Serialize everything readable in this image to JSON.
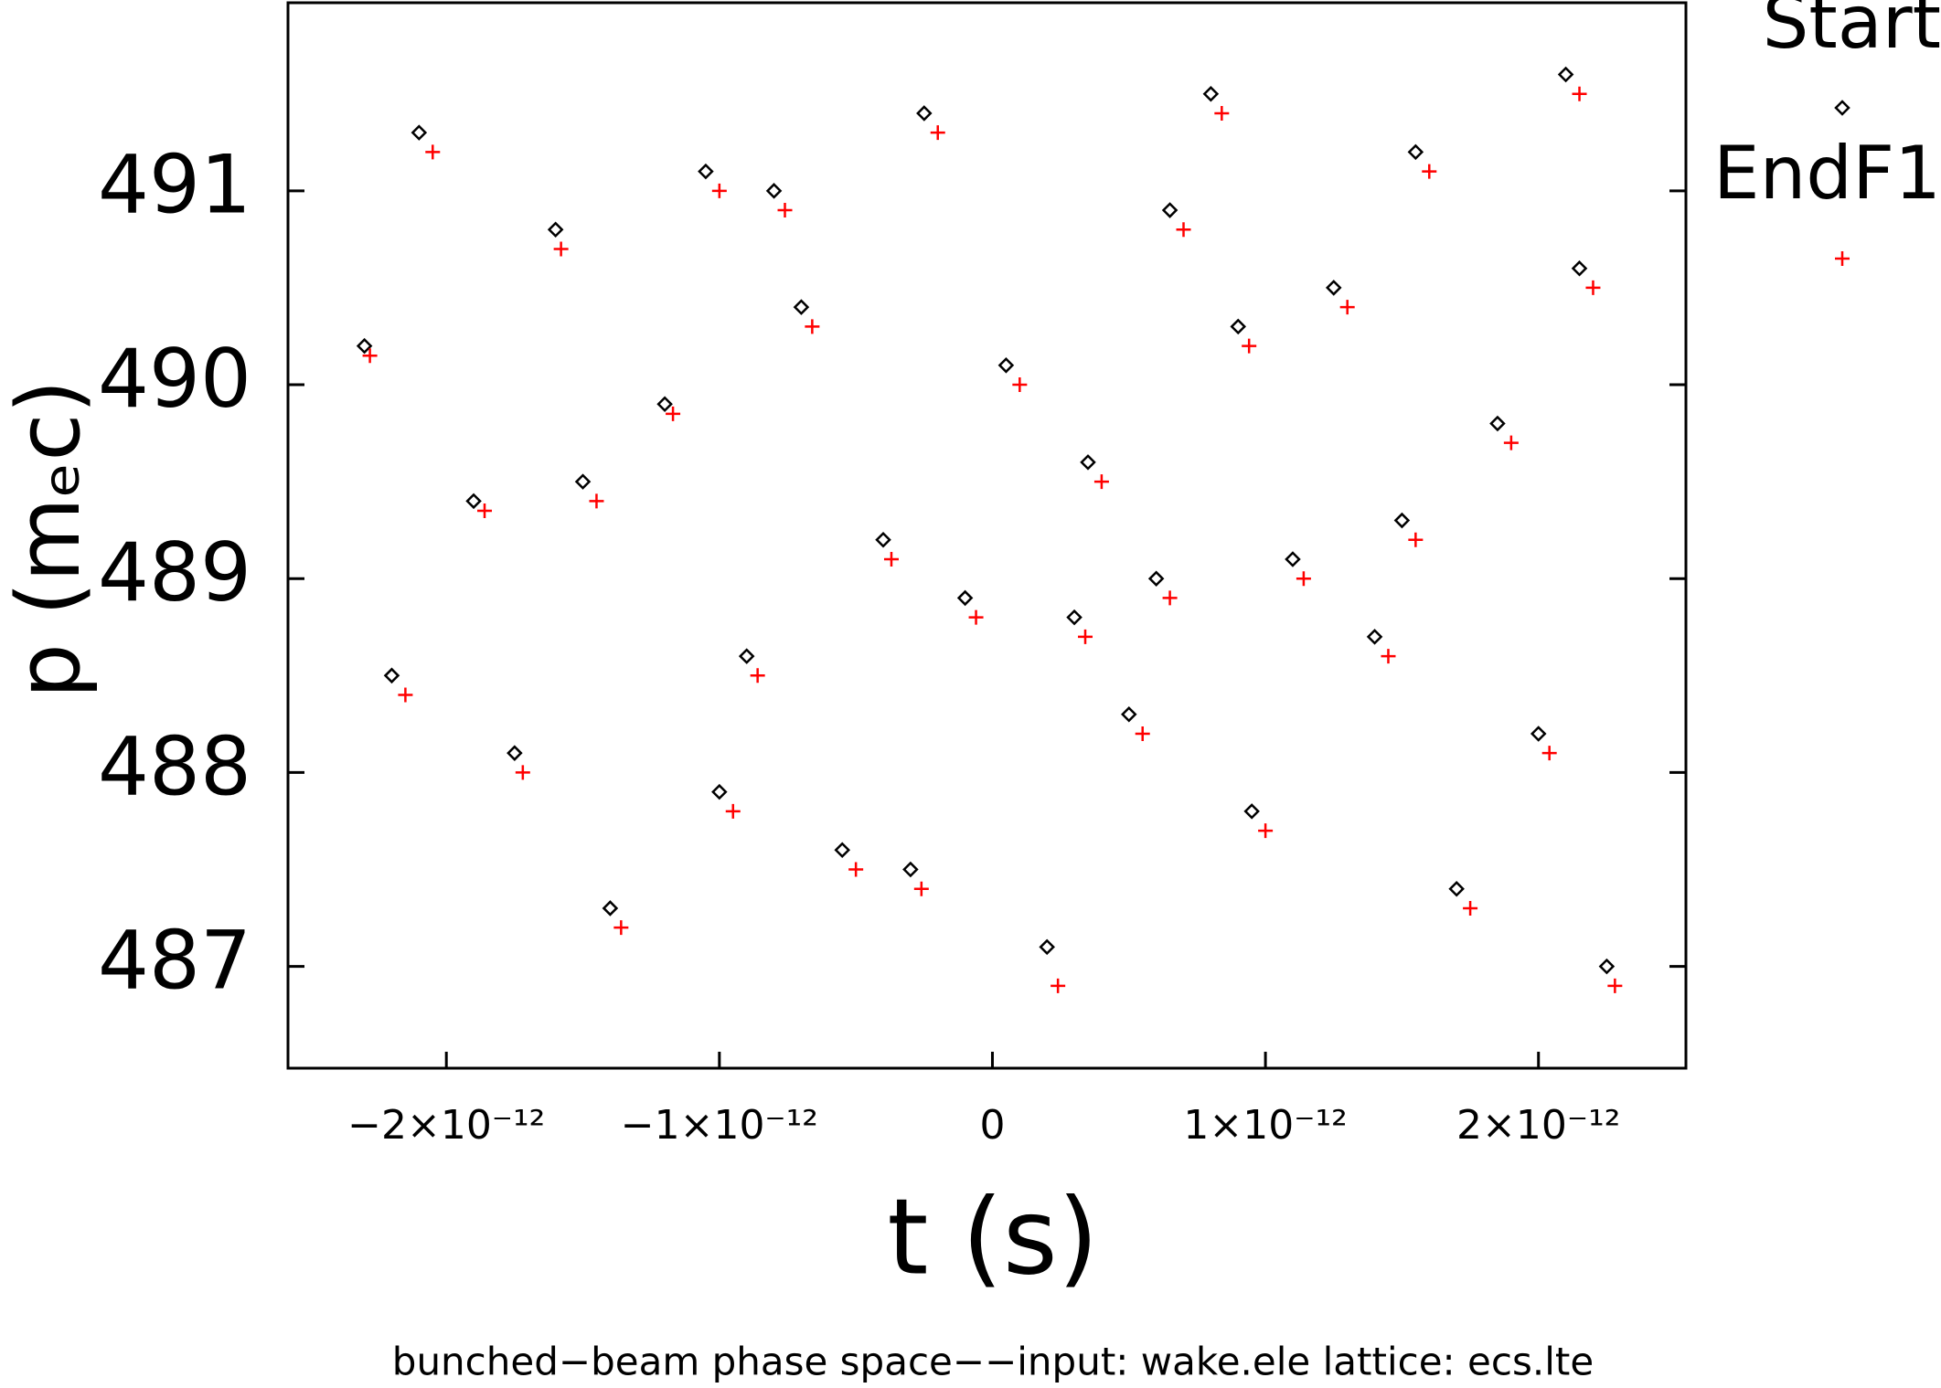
{
  "chart_data": {
    "type": "scatter",
    "x_label": "t (s)",
    "y_label": "p (mₑc)",
    "caption": "bunched−beam phase space−−input: wake.ele   lattice: ecs.lte",
    "xlim": [
      -2.58e-12,
      2.54e-12
    ],
    "ylim": [
      486.475,
      491.97
    ],
    "xticks": [
      {
        "value": -2e-12,
        "label": "−2×10⁻¹²"
      },
      {
        "value": -1e-12,
        "label": "−1×10⁻¹²"
      },
      0,
      {
        "value": 1e-12,
        "label": "1×10⁻¹²"
      },
      {
        "value": 2e-12,
        "label": "2×10⁻¹²"
      }
    ],
    "yticks": [
      487,
      488,
      489,
      490,
      491
    ],
    "legend": "outside right",
    "series": [
      {
        "name": "Start",
        "marker": "diamond",
        "color": "#000000",
        "x": [
          -2.3e-12,
          -2.1e-12,
          -1.9e-12,
          -1.75e-12,
          -1.6e-12,
          -1.4e-12,
          -1.2e-12,
          -1.05e-12,
          -9e-13,
          -7e-13,
          -5.5e-13,
          -4e-13,
          -2.5e-13,
          -1e-13,
          5e-14,
          2e-13,
          3.5e-13,
          5e-13,
          6.5e-13,
          8e-13,
          9.5e-13,
          1.1e-12,
          1.25e-12,
          1.4e-12,
          1.55e-12,
          1.7e-12,
          1.85e-12,
          2e-12,
          2.15e-12,
          2.25e-12,
          -2.2e-12,
          -1.5e-12,
          -8e-13,
          -3e-13,
          3e-13,
          9e-13,
          1.5e-12,
          2.1e-12,
          -1e-12,
          6e-13
        ],
        "values": [
          490.2,
          491.3,
          489.4,
          488.1,
          490.8,
          487.3,
          489.9,
          491.1,
          488.6,
          490.4,
          487.6,
          489.2,
          491.4,
          488.9,
          490.1,
          487.1,
          489.6,
          488.3,
          490.9,
          491.5,
          487.8,
          489.1,
          490.5,
          488.7,
          491.2,
          487.4,
          489.8,
          488.2,
          490.6,
          487.0,
          488.5,
          489.5,
          491.0,
          487.5,
          488.8,
          490.3,
          489.3,
          491.6,
          487.9,
          489.0
        ]
      },
      {
        "name": "EndF1",
        "marker": "plus",
        "color": "#ff0000",
        "x": [
          -2.28e-12,
          -2.05e-12,
          -1.86e-12,
          -1.72e-12,
          -1.58e-12,
          -1.36e-12,
          -1.17e-12,
          -1e-12,
          -8.6e-13,
          -6.6e-13,
          -5e-13,
          -3.7e-13,
          -2e-13,
          -6e-14,
          1e-13,
          2.4e-13,
          4e-13,
          5.5e-13,
          7e-13,
          8.4e-13,
          1e-12,
          1.14e-12,
          1.3e-12,
          1.45e-12,
          1.6e-12,
          1.75e-12,
          1.9e-12,
          2.04e-12,
          2.2e-12,
          2.28e-12,
          -2.15e-12,
          -1.45e-12,
          -7.6e-13,
          -2.6e-13,
          3.4e-13,
          9.4e-13,
          1.55e-12,
          2.15e-12,
          -9.5e-13,
          6.5e-13
        ],
        "values": [
          490.15,
          491.2,
          489.35,
          488.0,
          490.7,
          487.2,
          489.85,
          491.0,
          488.5,
          490.3,
          487.5,
          489.1,
          491.3,
          488.8,
          490.0,
          486.9,
          489.5,
          488.2,
          490.8,
          491.4,
          487.7,
          489.0,
          490.4,
          488.6,
          491.1,
          487.3,
          489.7,
          488.1,
          490.5,
          486.9,
          488.4,
          489.4,
          490.9,
          487.4,
          488.7,
          490.2,
          489.2,
          491.5,
          487.8,
          488.9
        ]
      }
    ]
  }
}
